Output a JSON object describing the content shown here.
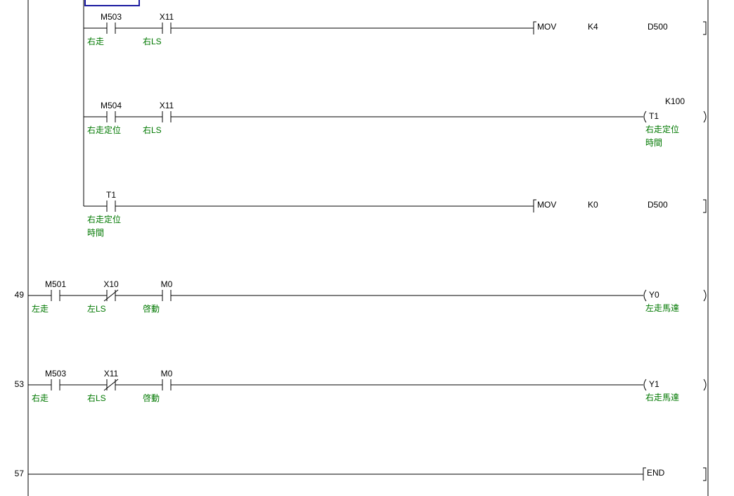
{
  "colors": {
    "wire": "#000000",
    "comment": "#007800",
    "cursor": "#1a1aa0"
  },
  "rungs": [
    {
      "step": "",
      "contacts": [
        {
          "device": "M503",
          "comment": [
            "右走"
          ],
          "type": "NO"
        },
        {
          "device": "X11",
          "comment": [
            "右LS"
          ],
          "type": "NO"
        }
      ],
      "output": {
        "kind": "instruction",
        "op": "MOV",
        "args": [
          "K4",
          "D500"
        ]
      }
    },
    {
      "step": "",
      "contacts": [
        {
          "device": "M504",
          "comment": [
            "右走定位"
          ],
          "type": "NO"
        },
        {
          "device": "X11",
          "comment": [
            "右LS"
          ],
          "type": "NO"
        }
      ],
      "output": {
        "kind": "coil",
        "device": "T1",
        "setpoint": "K100",
        "comment": [
          "右走定位",
          "時間"
        ]
      }
    },
    {
      "step": "",
      "contacts": [
        {
          "device": "T1",
          "comment": [
            "右走定位",
            "時間"
          ],
          "type": "NO"
        }
      ],
      "output": {
        "kind": "instruction",
        "op": "MOV",
        "args": [
          "K0",
          "D500"
        ]
      }
    },
    {
      "step": "49",
      "contacts": [
        {
          "device": "M501",
          "comment": [
            "左走"
          ],
          "type": "NO"
        },
        {
          "device": "X10",
          "comment": [
            "左LS"
          ],
          "type": "NC"
        },
        {
          "device": "M0",
          "comment": [
            "啓動"
          ],
          "type": "NO"
        }
      ],
      "output": {
        "kind": "coil",
        "device": "Y0",
        "setpoint": "",
        "comment": [
          "左走馬達"
        ]
      }
    },
    {
      "step": "53",
      "contacts": [
        {
          "device": "M503",
          "comment": [
            "右走"
          ],
          "type": "NO"
        },
        {
          "device": "X11",
          "comment": [
            "右LS"
          ],
          "type": "NC"
        },
        {
          "device": "M0",
          "comment": [
            "啓動"
          ],
          "type": "NO"
        }
      ],
      "output": {
        "kind": "coil",
        "device": "Y1",
        "setpoint": "",
        "comment": [
          "右走馬達"
        ]
      }
    },
    {
      "step": "57",
      "contacts": [],
      "output": {
        "kind": "instruction",
        "op": "END",
        "args": []
      }
    }
  ]
}
